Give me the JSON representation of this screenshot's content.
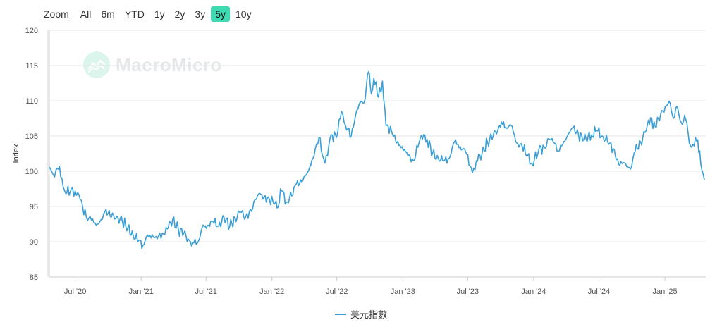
{
  "zoom": {
    "label": "Zoom",
    "options": [
      "All",
      "6m",
      "YTD",
      "1y",
      "2y",
      "3y",
      "5y",
      "10y"
    ],
    "active": "5y"
  },
  "watermark": "MacroMicro",
  "colors": {
    "series": "#3a9fd6",
    "active_zoom": "#3fd9b2",
    "grid": "#e6e6e6"
  },
  "chart_data": {
    "type": "line",
    "title": "",
    "xlabel": "",
    "ylabel": "Index",
    "ylim": [
      85,
      120
    ],
    "yticks": [
      85,
      90,
      95,
      100,
      105,
      110,
      115,
      120
    ],
    "xlim": [
      "2020-04-20",
      "2025-04-25"
    ],
    "xticks": [
      {
        "date": "2020-07-01",
        "label": "Jul '20"
      },
      {
        "date": "2021-01-01",
        "label": "Jan '21"
      },
      {
        "date": "2021-07-01",
        "label": "Jul '21"
      },
      {
        "date": "2022-01-01",
        "label": "Jan '22"
      },
      {
        "date": "2022-07-01",
        "label": "Jul '22"
      },
      {
        "date": "2023-01-01",
        "label": "Jan '23"
      },
      {
        "date": "2023-07-01",
        "label": "Jul '23"
      },
      {
        "date": "2024-01-01",
        "label": "Jan '24"
      },
      {
        "date": "2024-07-01",
        "label": "Jul '24"
      },
      {
        "date": "2025-01-01",
        "label": "Jan '25"
      }
    ],
    "grid": true,
    "legend_position": "bottom",
    "series": [
      {
        "name": "美元指數",
        "points": [
          [
            "2020-04-20",
            100.6
          ],
          [
            "2020-05-01",
            99.5
          ],
          [
            "2020-05-15",
            100.3
          ],
          [
            "2020-05-25",
            99.0
          ],
          [
            "2020-06-05",
            96.8
          ],
          [
            "2020-06-20",
            97.5
          ],
          [
            "2020-07-01",
            97.2
          ],
          [
            "2020-07-15",
            96.0
          ],
          [
            "2020-08-01",
            93.5
          ],
          [
            "2020-08-15",
            93.1
          ],
          [
            "2020-09-01",
            92.5
          ],
          [
            "2020-09-15",
            93.2
          ],
          [
            "2020-09-25",
            94.6
          ],
          [
            "2020-10-10",
            93.5
          ],
          [
            "2020-10-25",
            93.6
          ],
          [
            "2020-11-10",
            92.8
          ],
          [
            "2020-11-25",
            92.0
          ],
          [
            "2020-12-10",
            90.8
          ],
          [
            "2020-12-25",
            90.2
          ],
          [
            "2021-01-06",
            89.5
          ],
          [
            "2021-01-15",
            90.6
          ],
          [
            "2021-02-01",
            91.0
          ],
          [
            "2021-02-15",
            90.4
          ],
          [
            "2021-03-01",
            91.2
          ],
          [
            "2021-03-15",
            91.8
          ],
          [
            "2021-03-30",
            93.2
          ],
          [
            "2021-04-15",
            91.7
          ],
          [
            "2021-04-30",
            91.2
          ],
          [
            "2021-05-15",
            90.2
          ],
          [
            "2021-05-25",
            89.8
          ],
          [
            "2021-06-10",
            90.1
          ],
          [
            "2021-06-20",
            92.0
          ],
          [
            "2021-07-05",
            92.3
          ],
          [
            "2021-07-20",
            92.9
          ],
          [
            "2021-08-05",
            92.2
          ],
          [
            "2021-08-20",
            93.5
          ],
          [
            "2021-09-05",
            92.2
          ],
          [
            "2021-09-20",
            93.3
          ],
          [
            "2021-10-05",
            94.2
          ],
          [
            "2021-10-20",
            93.6
          ],
          [
            "2021-11-05",
            94.3
          ],
          [
            "2021-11-15",
            96.0
          ],
          [
            "2021-11-25",
            96.8
          ],
          [
            "2021-12-10",
            96.3
          ],
          [
            "2021-12-25",
            96.0
          ],
          [
            "2022-01-10",
            95.5
          ],
          [
            "2022-01-15",
            94.8
          ],
          [
            "2022-01-28",
            97.2
          ],
          [
            "2022-02-10",
            95.6
          ],
          [
            "2022-02-25",
            96.5
          ],
          [
            "2022-03-10",
            98.2
          ],
          [
            "2022-03-25",
            98.5
          ],
          [
            "2022-04-10",
            99.8
          ],
          [
            "2022-04-25",
            101.8
          ],
          [
            "2022-05-12",
            104.8
          ],
          [
            "2022-05-25",
            101.8
          ],
          [
            "2022-06-05",
            102.2
          ],
          [
            "2022-06-15",
            105.2
          ],
          [
            "2022-06-30",
            104.8
          ],
          [
            "2022-07-14",
            108.5
          ],
          [
            "2022-07-25",
            106.5
          ],
          [
            "2022-08-10",
            105.0
          ],
          [
            "2022-08-25",
            108.6
          ],
          [
            "2022-09-05",
            109.8
          ],
          [
            "2022-09-15",
            109.7
          ],
          [
            "2022-09-27",
            114.1
          ],
          [
            "2022-10-05",
            111.0
          ],
          [
            "2022-10-12",
            113.2
          ],
          [
            "2022-10-25",
            110.5
          ],
          [
            "2022-11-05",
            112.8
          ],
          [
            "2022-11-15",
            106.5
          ],
          [
            "2022-11-30",
            105.8
          ],
          [
            "2022-12-15",
            104.0
          ],
          [
            "2022-12-30",
            103.5
          ],
          [
            "2023-01-15",
            102.2
          ],
          [
            "2023-01-30",
            101.5
          ],
          [
            "2023-02-15",
            104.0
          ],
          [
            "2023-02-28",
            105.2
          ],
          [
            "2023-03-10",
            104.5
          ],
          [
            "2023-03-25",
            102.5
          ],
          [
            "2023-04-10",
            101.8
          ],
          [
            "2023-04-25",
            101.5
          ],
          [
            "2023-05-10",
            101.8
          ],
          [
            "2023-05-25",
            104.2
          ],
          [
            "2023-06-10",
            103.5
          ],
          [
            "2023-06-25",
            102.8
          ],
          [
            "2023-07-14",
            99.8
          ],
          [
            "2023-07-25",
            101.5
          ],
          [
            "2023-08-10",
            102.5
          ],
          [
            "2023-08-25",
            104.2
          ],
          [
            "2023-09-10",
            105.0
          ],
          [
            "2023-09-25",
            106.2
          ],
          [
            "2023-10-03",
            107.0
          ],
          [
            "2023-10-15",
            106.2
          ],
          [
            "2023-10-30",
            106.5
          ],
          [
            "2023-11-15",
            104.0
          ],
          [
            "2023-11-30",
            103.5
          ],
          [
            "2023-12-15",
            102.2
          ],
          [
            "2023-12-28",
            101.0
          ],
          [
            "2024-01-15",
            103.0
          ],
          [
            "2024-01-30",
            103.5
          ],
          [
            "2024-02-15",
            104.5
          ],
          [
            "2024-02-28",
            104.0
          ],
          [
            "2024-03-10",
            102.8
          ],
          [
            "2024-03-25",
            104.2
          ],
          [
            "2024-04-10",
            105.5
          ],
          [
            "2024-04-20",
            106.2
          ],
          [
            "2024-05-05",
            105.2
          ],
          [
            "2024-05-20",
            104.5
          ],
          [
            "2024-06-10",
            105.1
          ],
          [
            "2024-06-25",
            105.8
          ],
          [
            "2024-07-10",
            105.0
          ],
          [
            "2024-07-25",
            104.2
          ],
          [
            "2024-08-10",
            103.2
          ],
          [
            "2024-08-25",
            101.0
          ],
          [
            "2024-09-10",
            101.2
          ],
          [
            "2024-09-27",
            100.3
          ],
          [
            "2024-10-10",
            102.8
          ],
          [
            "2024-10-25",
            104.2
          ],
          [
            "2024-11-10",
            105.8
          ],
          [
            "2024-11-22",
            107.6
          ],
          [
            "2024-12-05",
            106.3
          ],
          [
            "2024-12-20",
            108.1
          ],
          [
            "2025-01-02",
            109.2
          ],
          [
            "2025-01-13",
            109.9
          ],
          [
            "2025-01-25",
            107.5
          ],
          [
            "2025-02-03",
            109.2
          ],
          [
            "2025-02-15",
            107.0
          ],
          [
            "2025-02-28",
            107.4
          ],
          [
            "2025-03-10",
            104.0
          ],
          [
            "2025-03-20",
            103.8
          ],
          [
            "2025-03-31",
            104.2
          ],
          [
            "2025-04-08",
            102.9
          ],
          [
            "2025-04-14",
            100.2
          ],
          [
            "2025-04-21",
            98.8
          ]
        ]
      }
    ]
  }
}
